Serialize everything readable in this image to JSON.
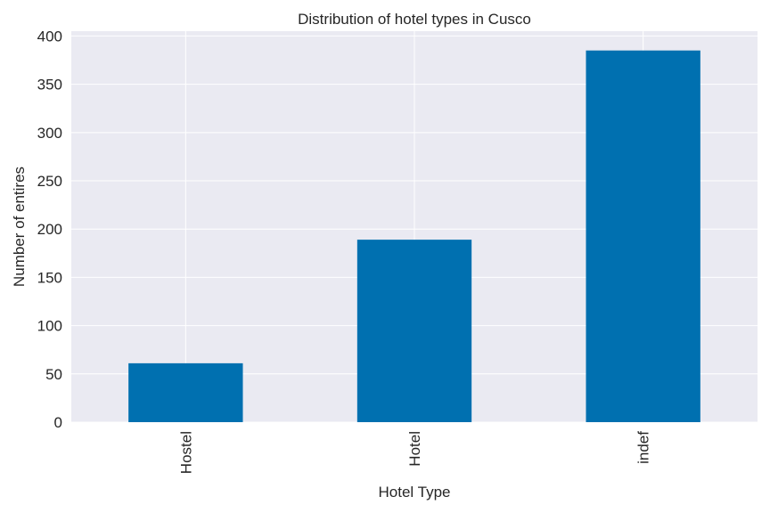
{
  "chart_data": {
    "type": "bar",
    "title": "Distribution of hotel types in Cusco",
    "xlabel": "Hotel Type",
    "ylabel": "Number of entires",
    "categories": [
      "Hostel",
      "Hotel",
      "indef"
    ],
    "values": [
      61,
      189,
      385
    ],
    "ylim": [
      0,
      405
    ],
    "yticks": [
      0,
      50,
      100,
      150,
      200,
      250,
      300,
      350,
      400
    ],
    "grid": true,
    "legend": "none",
    "colors": {
      "bar": "#0070b0",
      "plot_background": "#eaeaf2",
      "grid": "#ffffff"
    }
  }
}
